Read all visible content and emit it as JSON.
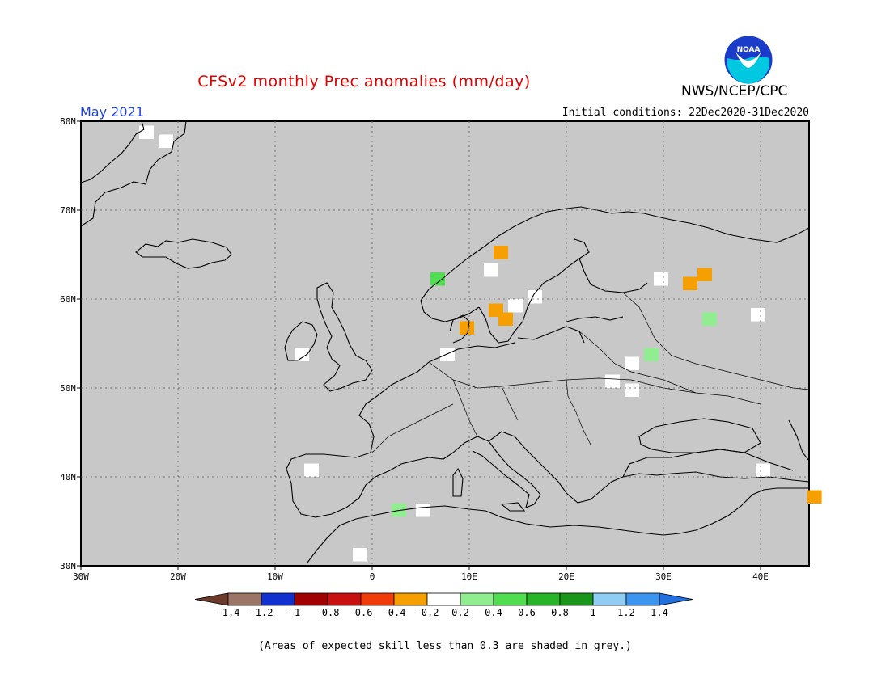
{
  "header": {
    "title": "CFSv2 monthly Prec anomalies (mm/day)",
    "org": "NWS/NCEP/CPC",
    "logo_text": "NOAA",
    "period": "May 2021",
    "initial_conditions": "Initial conditions: 22Dec2020-31Dec2020"
  },
  "map": {
    "projection": "lat-lon",
    "lon_range": [
      -30,
      45
    ],
    "lat_range": [
      30,
      80
    ],
    "background": "#c8c8c8",
    "lat_ticks": [
      "30N",
      "40N",
      "50N",
      "60N",
      "70N",
      "80N"
    ],
    "lon_ticks": [
      "30W",
      "20W",
      "10W",
      "0",
      "10E",
      "20E",
      "30E",
      "40E"
    ],
    "grid": "dotted"
  },
  "colorbar": {
    "labels": [
      "-1.4",
      "-1.2",
      "-1",
      "-0.8",
      "-0.6",
      "-0.4",
      "-0.2",
      "0.2",
      "0.4",
      "0.6",
      "0.8",
      "1",
      "1.2",
      "1.4"
    ],
    "colors": [
      "#6b3a2a",
      "#9b7565",
      "#1030d0",
      "#a00000",
      "#c81010",
      "#f03c0a",
      "#f5a000",
      "#ffffff",
      "#90ee90",
      "#50dd50",
      "#28b428",
      "#1a961a",
      "#8fcdf5",
      "#3c96f0",
      "#2070e0"
    ]
  },
  "anomaly_cells": [
    {
      "lon": -24,
      "lat": 78,
      "value": 0.0
    },
    {
      "lon": -22,
      "lat": 77,
      "value": 0.0
    },
    {
      "lon": -8,
      "lat": 53,
      "value": 0.0
    },
    {
      "lon": 6,
      "lat": 61.5,
      "value": 0.5
    },
    {
      "lon": 12.5,
      "lat": 64.5,
      "value": -0.3
    },
    {
      "lon": 11.5,
      "lat": 62.5,
      "value": 0.0
    },
    {
      "lon": 14,
      "lat": 58.5,
      "value": 0.0
    },
    {
      "lon": 16,
      "lat": 59.5,
      "value": 0.0
    },
    {
      "lon": 12,
      "lat": 58,
      "value": -0.3
    },
    {
      "lon": 13,
      "lat": 57,
      "value": -0.3
    },
    {
      "lon": 9,
      "lat": 56,
      "value": -0.3
    },
    {
      "lon": 7,
      "lat": 53,
      "value": 0.0
    },
    {
      "lon": 32,
      "lat": 61,
      "value": -0.3
    },
    {
      "lon": 33.5,
      "lat": 62,
      "value": -0.3
    },
    {
      "lon": 29,
      "lat": 61.5,
      "value": 0.0
    },
    {
      "lon": 34,
      "lat": 57,
      "value": 0.3
    },
    {
      "lon": 28,
      "lat": 53,
      "value": 0.3
    },
    {
      "lon": 26,
      "lat": 52,
      "value": 0.0
    },
    {
      "lon": 24,
      "lat": 50,
      "value": 0.0
    },
    {
      "lon": 39,
      "lat": 57.5,
      "value": 0.0
    },
    {
      "lon": 26,
      "lat": 49,
      "value": 0.0
    },
    {
      "lon": -7,
      "lat": 40,
      "value": 0.0
    },
    {
      "lon": 2,
      "lat": 35.5,
      "value": 0.3
    },
    {
      "lon": 4.5,
      "lat": 35.5,
      "value": 0.0
    },
    {
      "lon": 39.5,
      "lat": 40,
      "value": 0.0
    },
    {
      "lon": -2,
      "lat": 30.5,
      "value": 0.0
    },
    {
      "lon": 44.8,
      "lat": 37,
      "value": -0.3
    }
  ],
  "footer_note": "(Areas of expected skill less than 0.3 are shaded in grey.)"
}
